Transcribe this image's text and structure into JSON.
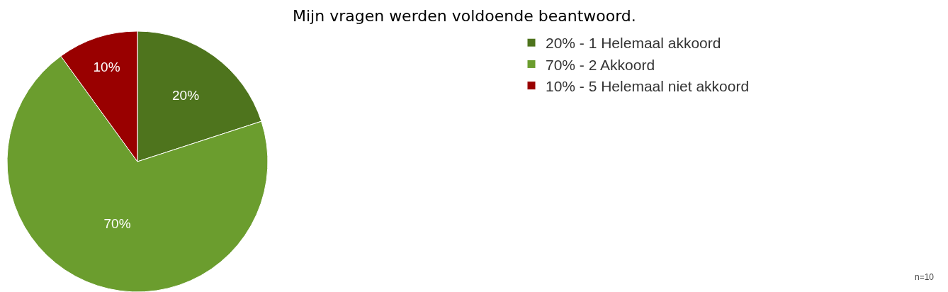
{
  "chart_data": {
    "type": "pie",
    "title": "Mijn vragen werden voldoende beantwoord.",
    "categories": [
      "20% - 1 Helemaal akkoord",
      "70% - 2 Akkoord",
      "10% - 5 Helemaal niet akkoord"
    ],
    "values": [
      20,
      70,
      10
    ],
    "colors": [
      "#4e741d",
      "#6b9d2e",
      "#990000"
    ],
    "value_labels": [
      "20%",
      "70%",
      "10%"
    ],
    "legend": "top right",
    "annotations": [
      "n=10"
    ]
  }
}
